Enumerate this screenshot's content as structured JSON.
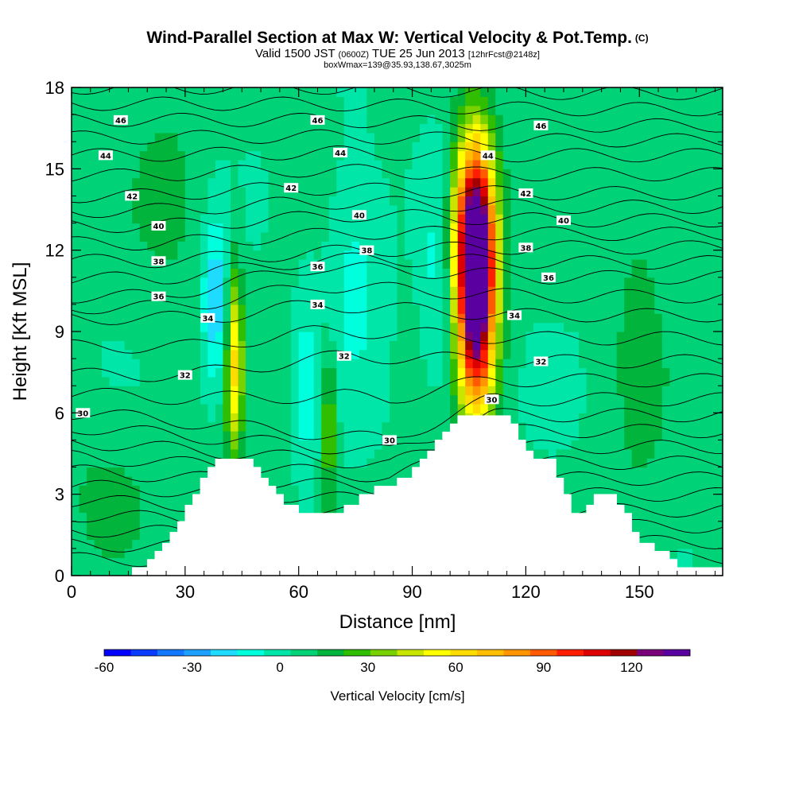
{
  "header": {
    "title": "Wind-Parallel Section at Max W: Vertical Velocity & Pot.Temp.",
    "copyright": "(C)",
    "valid_prefix": "Valid 1500 JST",
    "valid_utc": "(0600Z)",
    "valid_date": "TUE 25 Jun 2013",
    "forecast": "[12hrFcst@2148z]",
    "box_info": "boxWmax=139@35.93,138.67,3025m"
  },
  "chart_data": {
    "type": "heatmap",
    "xlabel": "Distance [nm]",
    "ylabel": "Height [Kft MSL]",
    "xlim": [
      0,
      172
    ],
    "ylim": [
      0,
      18
    ],
    "x_ticks": [
      "0",
      "30",
      "60",
      "90",
      "120",
      "150"
    ],
    "y_ticks": [
      "0",
      "3",
      "6",
      "9",
      "12",
      "15",
      "18"
    ],
    "colorbar": {
      "title": "Vertical Velocity [cm/s]",
      "tick_labels": [
        "-60",
        "-30",
        "0",
        "30",
        "60",
        "90",
        "120"
      ],
      "tick_values": [
        -60,
        -30,
        0,
        30,
        60,
        90,
        120
      ],
      "min": -60,
      "max": 140,
      "levels": 20,
      "colors": [
        "#0000ff",
        "#0a3cff",
        "#1478ff",
        "#1ea0ff",
        "#1edcff",
        "#00ffdc",
        "#00e6a8",
        "#00d278",
        "#00b43c",
        "#32be00",
        "#78d200",
        "#c8e600",
        "#ffff00",
        "#ffdc00",
        "#ffbe00",
        "#ff9600",
        "#ff5a00",
        "#ff1e00",
        "#dc0000",
        "#a00000",
        "#780078",
        "#5a00a0"
      ]
    },
    "terrain_profile": {
      "x": [
        0,
        16,
        20,
        22,
        24,
        26,
        28,
        30,
        32,
        34,
        36,
        38,
        40,
        42,
        44,
        46,
        48,
        50,
        52,
        54,
        56,
        60,
        70,
        72,
        74,
        76,
        78,
        80,
        82,
        84,
        86,
        88,
        90,
        92,
        94,
        96,
        98,
        100,
        102,
        104,
        106,
        110,
        114,
        116,
        118,
        120,
        122,
        124,
        126,
        128,
        130,
        132,
        134,
        136,
        138,
        140,
        142,
        144,
        146,
        148,
        150,
        154,
        158,
        160,
        172
      ],
      "y": [
        0,
        0.3,
        0.6,
        0.9,
        1.2,
        1.6,
        2.0,
        2.6,
        3.0,
        3.6,
        4.0,
        4.3,
        4.3,
        4.3,
        4.3,
        4.3,
        4.0,
        3.6,
        3.3,
        3.0,
        2.6,
        2.3,
        2.3,
        2.6,
        2.6,
        3.0,
        3.0,
        3.3,
        3.3,
        3.3,
        3.6,
        3.6,
        4.0,
        4.3,
        4.6,
        5.0,
        5.3,
        5.6,
        5.9,
        5.9,
        5.9,
        5.9,
        5.9,
        5.6,
        5.0,
        4.6,
        4.3,
        4.3,
        4.3,
        3.6,
        3.0,
        2.3,
        2.3,
        2.6,
        3.0,
        3.0,
        3.0,
        2.6,
        2.3,
        1.6,
        1.2,
        0.9,
        0.6,
        0.3,
        0
      ]
    },
    "w_features": [
      {
        "x": 107,
        "y": 10.5,
        "peak": 139,
        "sx": 3.5,
        "sy": 3.2
      },
      {
        "x": 106,
        "y": 13,
        "peak": 60,
        "sx": 4,
        "sy": 2.5
      },
      {
        "x": 43,
        "y": 7.8,
        "peak": 55,
        "sx": 1.6,
        "sy": 2.5
      },
      {
        "x": 68,
        "y": 5.5,
        "peak": 30,
        "sx": 1.4,
        "sy": 2
      },
      {
        "x": 38,
        "y": 10,
        "peak": -30,
        "sx": 2.5,
        "sy": 2.2
      },
      {
        "x": 62,
        "y": 7,
        "peak": -14,
        "sx": 2,
        "sy": 2.5
      },
      {
        "x": 97,
        "y": 11,
        "peak": -14,
        "sx": 3,
        "sy": 3
      },
      {
        "x": 75,
        "y": 11,
        "peak": -14,
        "sx": 5,
        "sy": 3
      },
      {
        "x": 26,
        "y": 14,
        "peak": 10,
        "sx": 8,
        "sy": 3
      },
      {
        "x": 150,
        "y": 9,
        "peak": 10,
        "sx": 6,
        "sy": 6
      },
      {
        "x": 10,
        "y": 3,
        "peak": 10,
        "sx": 10,
        "sy": 2
      }
    ],
    "theta_labels": [
      {
        "text": "46",
        "x": 13,
        "y": 16.8
      },
      {
        "text": "46",
        "x": 65,
        "y": 16.8
      },
      {
        "text": "46",
        "x": 124,
        "y": 16.6
      },
      {
        "text": "44",
        "x": 9,
        "y": 15.5
      },
      {
        "text": "44",
        "x": 71,
        "y": 15.6
      },
      {
        "text": "44",
        "x": 110,
        "y": 15.5
      },
      {
        "text": "42",
        "x": 16,
        "y": 14.0
      },
      {
        "text": "42",
        "x": 58,
        "y": 14.3
      },
      {
        "text": "42",
        "x": 120,
        "y": 14.1
      },
      {
        "text": "40",
        "x": 23,
        "y": 12.9
      },
      {
        "text": "40",
        "x": 76,
        "y": 13.3
      },
      {
        "text": "40",
        "x": 130,
        "y": 13.1
      },
      {
        "text": "38",
        "x": 23,
        "y": 11.6
      },
      {
        "text": "38",
        "x": 78,
        "y": 12.0
      },
      {
        "text": "38",
        "x": 120,
        "y": 12.1
      },
      {
        "text": "36",
        "x": 23,
        "y": 10.3
      },
      {
        "text": "36",
        "x": 65,
        "y": 11.4
      },
      {
        "text": "36",
        "x": 126,
        "y": 11.0
      },
      {
        "text": "34",
        "x": 36,
        "y": 9.5
      },
      {
        "text": "34",
        "x": 65,
        "y": 10.0
      },
      {
        "text": "34",
        "x": 117,
        "y": 9.6
      },
      {
        "text": "32",
        "x": 30,
        "y": 7.4
      },
      {
        "text": "32",
        "x": 72,
        "y": 8.1
      },
      {
        "text": "32",
        "x": 124,
        "y": 7.9
      },
      {
        "text": "30",
        "x": 3,
        "y": 6.0
      },
      {
        "text": "30",
        "x": 84,
        "y": 5.0
      },
      {
        "text": "30",
        "x": 111,
        "y": 6.5
      }
    ]
  }
}
